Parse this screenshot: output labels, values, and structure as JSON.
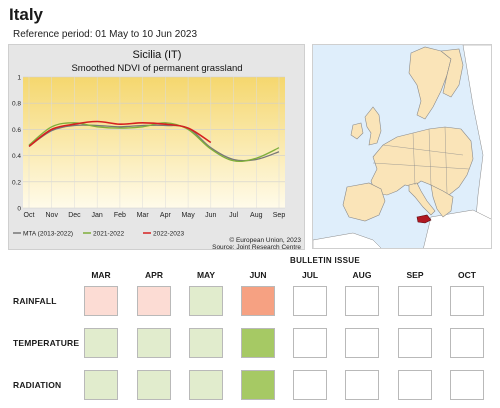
{
  "header": {
    "country": "Italy",
    "reference_period": "Reference period: 01 May to 10 Jun 2023"
  },
  "chart": {
    "region_title": "Sicilia (IT)",
    "subtitle": "Smoothed NDVI of permanent grassland",
    "attribution_line1": "© European Union, 2023",
    "attribution_line2": "Source: Joint Research Centre",
    "colors": {
      "mta": "#777777",
      "y2122": "#7fae3a",
      "y2223": "#d62020",
      "bg_top": "#f5d76e",
      "bg_bottom": "#fffbea"
    }
  },
  "chart_data": {
    "type": "line",
    "title": "Sicilia (IT)",
    "subtitle": "Smoothed NDVI of permanent grassland",
    "categories": [
      "Oct",
      "Nov",
      "Dec",
      "Jan",
      "Feb",
      "Mar",
      "Apr",
      "May",
      "Jun",
      "Jul",
      "Aug",
      "Sep"
    ],
    "yticks": [
      "0",
      "0.2",
      "0.4",
      "0.6",
      "0.8",
      "1"
    ],
    "ylim": [
      0,
      1
    ],
    "grid": true,
    "legend_position": "bottom",
    "series": [
      {
        "name": "MTA (2013-2022)",
        "color": "#777777",
        "values": [
          0.47,
          0.59,
          0.63,
          0.63,
          0.62,
          0.63,
          0.63,
          0.61,
          0.46,
          0.37,
          0.37,
          0.43
        ]
      },
      {
        "name": "2021-2022",
        "color": "#7fae3a",
        "values": [
          0.48,
          0.62,
          0.65,
          0.62,
          0.61,
          0.62,
          0.65,
          0.6,
          0.45,
          0.36,
          0.38,
          0.46
        ]
      },
      {
        "name": "2022-2023",
        "color": "#d62020",
        "values": [
          0.47,
          0.6,
          0.64,
          0.66,
          0.64,
          0.65,
          0.64,
          0.61,
          0.5,
          null,
          null,
          null
        ]
      }
    ]
  },
  "map": {
    "highlight_region": "Sicilia",
    "colors": {
      "sea": "#dfeefb",
      "land": "#fae4b8",
      "outside": "#ffffff",
      "highlight": "#b01822",
      "border": "#8a8a8a"
    }
  },
  "bulletin": {
    "title": "BULLETIN ISSUE",
    "months": [
      "MAR",
      "APR",
      "MAY",
      "JUN",
      "JUL",
      "AUG",
      "SEP",
      "OCT"
    ],
    "rows": [
      {
        "label": "RAINFALL",
        "cells": [
          "#fcdcd4",
          "#fcdcd4",
          "#e1eccd",
          "#f6a182",
          "#ffffff",
          "#ffffff",
          "#ffffff",
          "#ffffff"
        ]
      },
      {
        "label": "TEMPERATURE",
        "cells": [
          "#e1eccd",
          "#e1eccd",
          "#e1eccd",
          "#a6c964",
          "#ffffff",
          "#ffffff",
          "#ffffff",
          "#ffffff"
        ]
      },
      {
        "label": "RADIATION",
        "cells": [
          "#e1eccd",
          "#e1eccd",
          "#e1eccd",
          "#a6c964",
          "#ffffff",
          "#ffffff",
          "#ffffff",
          "#ffffff"
        ]
      }
    ]
  }
}
